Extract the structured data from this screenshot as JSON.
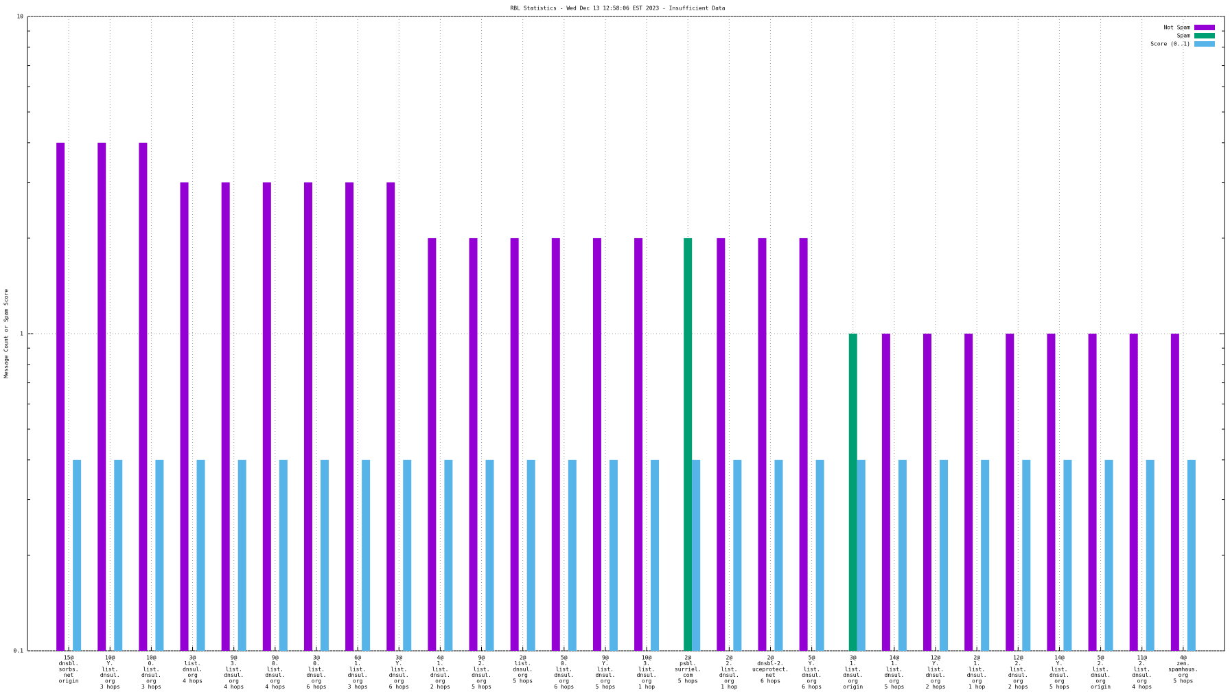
{
  "chart_data": {
    "type": "bar",
    "log_y": true,
    "grid": true,
    "legend": "top-right",
    "title": "RBL Statistics - Wed Dec 13 12:58:06 EST 2023 - Insufficient Data",
    "y_label": "Message Count or Spam Score",
    "ylim": [
      0.1,
      10
    ],
    "yticks": [
      0.1,
      1,
      10
    ],
    "categories": [
      [
        "15@",
        "dnsbl.",
        "sorbs.",
        "net",
        "origin"
      ],
      [
        "10@",
        "Y.",
        "list.",
        "dnsul.",
        "org",
        "3 hops"
      ],
      [
        "10@",
        "0.",
        "list.",
        "dnsul.",
        "org",
        "3 hops"
      ],
      [
        "3@",
        "list.",
        "dnsul.",
        "org",
        "4 hops"
      ],
      [
        "9@",
        "3.",
        "list.",
        "dnsul.",
        "org",
        "4 hops"
      ],
      [
        "9@",
        "0.",
        "list.",
        "dnsul.",
        "org",
        "4 hops"
      ],
      [
        "3@",
        "0.",
        "list.",
        "dnsul.",
        "org",
        "6 hops"
      ],
      [
        "6@",
        "1.",
        "list.",
        "dnsul.",
        "org",
        "3 hops"
      ],
      [
        "3@",
        "Y.",
        "list.",
        "dnsul.",
        "org",
        "6 hops"
      ],
      [
        "4@",
        "1.",
        "list.",
        "dnsul.",
        "org",
        "2 hops"
      ],
      [
        "9@",
        "2.",
        "list.",
        "dnsul.",
        "org",
        "5 hops"
      ],
      [
        "2@",
        "list.",
        "dnsul.",
        "org",
        "5 hops"
      ],
      [
        "5@",
        "0.",
        "list.",
        "dnsul.",
        "org",
        "6 hops"
      ],
      [
        "9@",
        "Y.",
        "list.",
        "dnsul.",
        "org",
        "5 hops"
      ],
      [
        "10@",
        "3.",
        "list.",
        "dnsul.",
        "org",
        "1 hop"
      ],
      [
        "2@",
        "psbl.",
        "surriel.",
        "com",
        "5 hops"
      ],
      [
        "2@",
        "2.",
        "list.",
        "dnsul.",
        "org",
        "1 hop"
      ],
      [
        "2@",
        "dnsbl-2.",
        "uceprotect.",
        "net",
        "6 hops"
      ],
      [
        "5@",
        "Y.",
        "list.",
        "dnsul.",
        "org",
        "6 hops"
      ],
      [
        "3@",
        "1.",
        "list.",
        "dnsul.",
        "org",
        "origin"
      ],
      [
        "14@",
        "1.",
        "list.",
        "dnsul.",
        "org",
        "5 hops"
      ],
      [
        "12@",
        "Y.",
        "list.",
        "dnsul.",
        "org",
        "2 hops"
      ],
      [
        "2@",
        "1.",
        "list.",
        "dnsul.",
        "org",
        "1 hop"
      ],
      [
        "12@",
        "2.",
        "list.",
        "dnsul.",
        "org",
        "2 hops"
      ],
      [
        "14@",
        "Y.",
        "list.",
        "dnsul.",
        "org",
        "5 hops"
      ],
      [
        "5@",
        "2.",
        "list.",
        "dnsul.",
        "org",
        "origin"
      ],
      [
        "11@",
        "2.",
        "list.",
        "dnsul.",
        "org",
        "4 hops"
      ],
      [
        "4@",
        "zen.",
        "spamhaus.",
        "org",
        "5 hops"
      ]
    ],
    "series": [
      {
        "name": "Not Spam",
        "color": "#9400d3",
        "values": [
          4,
          4,
          4,
          3,
          3,
          3,
          3,
          3,
          3,
          2,
          2,
          2,
          2,
          2,
          2,
          null,
          2,
          2,
          2,
          null,
          1,
          1,
          1,
          1,
          1,
          1,
          1,
          1
        ]
      },
      {
        "name": "Spam",
        "color": "#009e73",
        "values": [
          null,
          null,
          null,
          null,
          null,
          null,
          null,
          null,
          null,
          null,
          null,
          null,
          null,
          null,
          null,
          2,
          null,
          null,
          null,
          1,
          null,
          null,
          null,
          null,
          null,
          null,
          null,
          null
        ]
      },
      {
        "name": "Score (0..1)",
        "color": "#56b4e9",
        "values": [
          0.4,
          0.4,
          0.4,
          0.4,
          0.4,
          0.4,
          0.4,
          0.4,
          0.4,
          0.4,
          0.4,
          0.4,
          0.4,
          0.4,
          0.4,
          0.4,
          0.4,
          0.4,
          0.4,
          0.4,
          0.4,
          0.4,
          0.4,
          0.4,
          0.4,
          0.4,
          0.4,
          0.4
        ]
      }
    ]
  }
}
